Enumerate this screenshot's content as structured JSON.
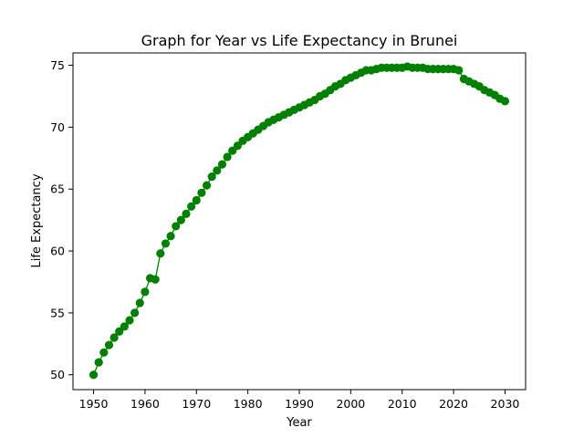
{
  "chart_data": {
    "type": "line",
    "title": "Graph for Year vs Life Expectancy in Brunei",
    "xlabel": "Year",
    "ylabel": "Life Expectancy",
    "xlim": [
      1946,
      2034
    ],
    "ylim": [
      48.8,
      76
    ],
    "xticks": [
      1950,
      1960,
      1970,
      1980,
      1990,
      2000,
      2010,
      2020,
      2030
    ],
    "yticks": [
      50,
      55,
      60,
      65,
      70,
      75
    ],
    "grid": false,
    "series": [
      {
        "color": "#008000",
        "marker": "circle",
        "x": [
          1950,
          1951,
          1952,
          1953,
          1954,
          1955,
          1956,
          1957,
          1958,
          1959,
          1960,
          1961,
          1962,
          1963,
          1964,
          1965,
          1966,
          1967,
          1968,
          1969,
          1970,
          1971,
          1972,
          1973,
          1974,
          1975,
          1976,
          1977,
          1978,
          1979,
          1980,
          1981,
          1982,
          1983,
          1984,
          1985,
          1986,
          1987,
          1988,
          1989,
          1990,
          1991,
          1992,
          1993,
          1994,
          1995,
          1996,
          1997,
          1998,
          1999,
          2000,
          2001,
          2002,
          2003,
          2004,
          2005,
          2006,
          2007,
          2008,
          2009,
          2010,
          2011,
          2012,
          2013,
          2014,
          2015,
          2016,
          2017,
          2018,
          2019,
          2020,
          2021,
          2022,
          2023,
          2024,
          2025,
          2026,
          2027,
          2028,
          2029,
          2030
        ],
        "y": [
          50.0,
          51.0,
          51.8,
          52.4,
          53.0,
          53.5,
          53.9,
          54.4,
          55.0,
          55.8,
          56.7,
          57.8,
          57.7,
          59.8,
          60.6,
          61.2,
          62.0,
          62.5,
          63.0,
          63.6,
          64.1,
          64.7,
          65.3,
          66.0,
          66.5,
          67.0,
          67.6,
          68.1,
          68.5,
          68.9,
          69.2,
          69.5,
          69.8,
          70.1,
          70.4,
          70.6,
          70.8,
          71.0,
          71.2,
          71.4,
          71.6,
          71.8,
          72.0,
          72.2,
          72.5,
          72.7,
          73.0,
          73.3,
          73.5,
          73.8,
          74.0,
          74.2,
          74.4,
          74.6,
          74.6,
          74.7,
          74.8,
          74.8,
          74.8,
          74.8,
          74.8,
          74.9,
          74.8,
          74.8,
          74.8,
          74.7,
          74.7,
          74.7,
          74.7,
          74.7,
          74.7,
          74.6,
          73.9,
          73.7,
          73.5,
          73.3,
          73.0,
          72.8,
          72.6,
          72.3,
          72.1
        ]
      }
    ]
  }
}
